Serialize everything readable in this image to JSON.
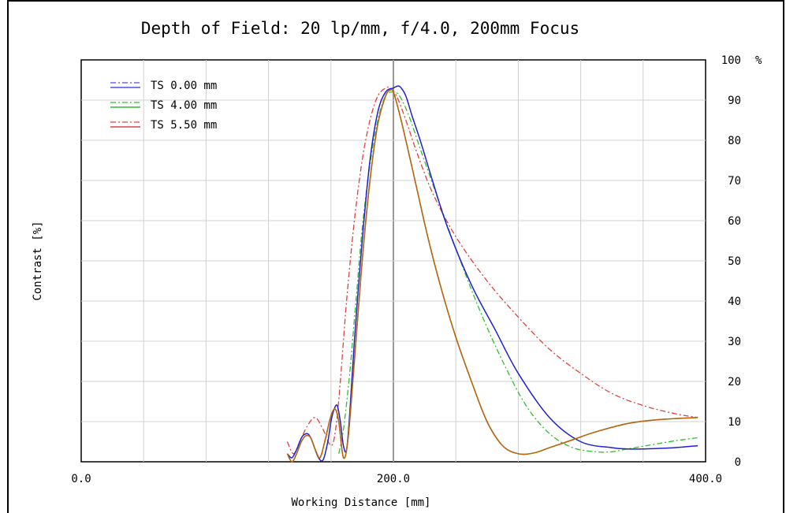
{
  "chart_data": {
    "type": "line",
    "title": "Depth of Field: 20 lp/mm, f/4.0, 200mm Focus",
    "xlabel": "Working Distance [mm]",
    "ylabel": "Contrast [%]",
    "y_unit": "%",
    "xlim": [
      0,
      400
    ],
    "ylim": [
      0,
      100
    ],
    "x_ticks": [
      {
        "value": 0,
        "label": "0.0"
      },
      {
        "value": 200,
        "label": "200.0"
      },
      {
        "value": 400,
        "label": "400.0"
      }
    ],
    "y_ticks": [
      {
        "value": 0,
        "label": "0"
      },
      {
        "value": 10,
        "label": "10"
      },
      {
        "value": 20,
        "label": "20"
      },
      {
        "value": 30,
        "label": "30"
      },
      {
        "value": 40,
        "label": "40"
      },
      {
        "value": 50,
        "label": "50"
      },
      {
        "value": 60,
        "label": "60"
      },
      {
        "value": 70,
        "label": "70"
      },
      {
        "value": 80,
        "label": "80"
      },
      {
        "value": 90,
        "label": "90"
      },
      {
        "value": 100,
        "label": "100"
      }
    ],
    "grid": true,
    "legend_position": "top-left",
    "series": [
      {
        "name": "TS 0.00 mm",
        "legend_entries": [
          {
            "label": "TS 0.00 mm",
            "color": "#5050e0",
            "style": "dashdot"
          },
          {
            "label": "TS 4.00 mm",
            "color": "#30c030",
            "style": "dashdot"
          },
          {
            "label": "TS 5.50 mm",
            "color": "#e04040",
            "style": "dashdot"
          }
        ],
        "tangential": {
          "color": "#2020d0",
          "style": "solid",
          "x": [
            132,
            135,
            138,
            140,
            142,
            145,
            147,
            149,
            152,
            155,
            158,
            160,
            162,
            164,
            166,
            168,
            170,
            172,
            175,
            180,
            185,
            190,
            195,
            200,
            203,
            205,
            208,
            212,
            218,
            225,
            235,
            250,
            265,
            280,
            300,
            320,
            340,
            350,
            360,
            380,
            395
          ],
          "y": [
            2,
            1,
            3,
            5,
            6.5,
            7,
            6,
            4,
            1,
            0.5,
            5,
            10,
            13,
            14,
            10,
            4,
            3,
            12,
            30,
            55,
            75,
            87,
            92,
            93,
            93.5,
            93,
            91,
            86,
            79,
            70,
            58,
            44,
            33,
            22,
            11,
            5,
            3.5,
            3.2,
            3.2,
            3.5,
            4
          ]
        },
        "sagittal": {
          "color": "#2020d0",
          "style": "dashdot",
          "x": [],
          "y": []
        }
      },
      {
        "name": "TS 4.00 mm",
        "tangential": {
          "color": "#30c030",
          "style": "solid",
          "x": [
            132,
            135,
            138,
            141,
            144,
            147,
            150,
            153,
            156,
            159,
            161,
            163,
            165,
            168,
            171,
            175,
            180,
            185,
            190,
            195,
            198,
            200,
            203,
            208,
            215,
            222,
            230,
            240,
            250,
            260,
            270,
            280,
            290,
            300,
            315,
            330,
            350,
            370,
            395
          ],
          "y": [
            2,
            0,
            2,
            5,
            6.5,
            6,
            3,
            1,
            5,
            10,
            12.5,
            13,
            10,
            1,
            6,
            25,
            50,
            70,
            84,
            91,
            92.5,
            92,
            88,
            80,
            68,
            56,
            44,
            31,
            20,
            10,
            4,
            2,
            2.2,
            3.5,
            5.5,
            7.5,
            9.5,
            10.5,
            11
          ]
        },
        "sagittal": {
          "color": "#30c030",
          "style": "dashdot",
          "x": [
            165,
            168,
            172,
            176,
            180,
            185,
            190,
            195,
            200,
            204,
            210,
            218,
            228,
            240,
            255,
            270,
            285,
            300,
            315,
            330,
            340,
            350,
            365,
            380,
            395
          ],
          "y": [
            2,
            8,
            22,
            40,
            58,
            74,
            85,
            91,
            92,
            91,
            86,
            77,
            66,
            53,
            38,
            25,
            14,
            7,
            3.5,
            2.5,
            2.5,
            3.2,
            4.2,
            5.2,
            6
          ]
        }
      },
      {
        "name": "TS 5.50 mm",
        "tangential": {
          "color": "#c06010",
          "style": "solid",
          "x": [
            132,
            135,
            138,
            141,
            144,
            147,
            150,
            153,
            156,
            159,
            161,
            163,
            165,
            168,
            171,
            175,
            180,
            185,
            190,
            195,
            198,
            200,
            203,
            208,
            215,
            222,
            230,
            240,
            250,
            260,
            270,
            280,
            290,
            300,
            315,
            330,
            350,
            370,
            395
          ],
          "y": [
            2,
            0,
            2,
            5,
            6.5,
            6,
            3,
            1,
            5,
            10,
            12.5,
            13,
            10,
            1,
            6,
            25,
            50,
            70,
            84,
            91,
            92.5,
            92,
            88,
            80,
            68,
            56,
            44,
            31,
            20,
            10,
            4,
            2,
            2.2,
            3.5,
            5.5,
            7.5,
            9.5,
            10.5,
            11
          ]
        },
        "sagittal": {
          "color": "#e04040",
          "style": "dashdot",
          "x": [
            132,
            136,
            140,
            145,
            150,
            155,
            160,
            163,
            166,
            170,
            175,
            180,
            185,
            190,
            195,
            198,
            202,
            208,
            215,
            225,
            240,
            260,
            280,
            300,
            320,
            340,
            360,
            380,
            395
          ],
          "y": [
            5,
            2,
            5,
            9,
            11,
            8,
            4,
            8,
            20,
            40,
            60,
            75,
            85,
            91,
            93,
            93,
            91,
            85,
            77,
            67,
            56,
            45,
            36,
            28,
            22,
            17,
            14,
            12,
            11
          ]
        }
      }
    ]
  }
}
